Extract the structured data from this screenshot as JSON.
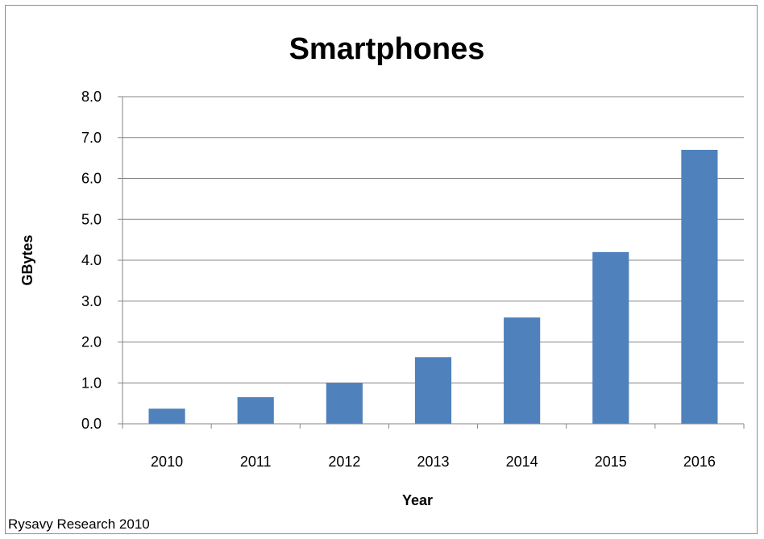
{
  "chart_data": {
    "type": "bar",
    "title": "Smartphones",
    "xlabel": "Year",
    "ylabel": "GBytes",
    "categories": [
      "2010",
      "2011",
      "2012",
      "2013",
      "2014",
      "2015",
      "2016"
    ],
    "values": [
      0.37,
      0.65,
      1.0,
      1.63,
      2.6,
      4.2,
      6.7
    ],
    "ylim": [
      0,
      8
    ],
    "yticks": [
      "0.0",
      "1.0",
      "2.0",
      "3.0",
      "4.0",
      "5.0",
      "6.0",
      "7.0",
      "8.0"
    ],
    "grid": true,
    "bar_color": "#4f81bd",
    "legend": "none"
  },
  "source_note": "Rysavy Research 2010"
}
